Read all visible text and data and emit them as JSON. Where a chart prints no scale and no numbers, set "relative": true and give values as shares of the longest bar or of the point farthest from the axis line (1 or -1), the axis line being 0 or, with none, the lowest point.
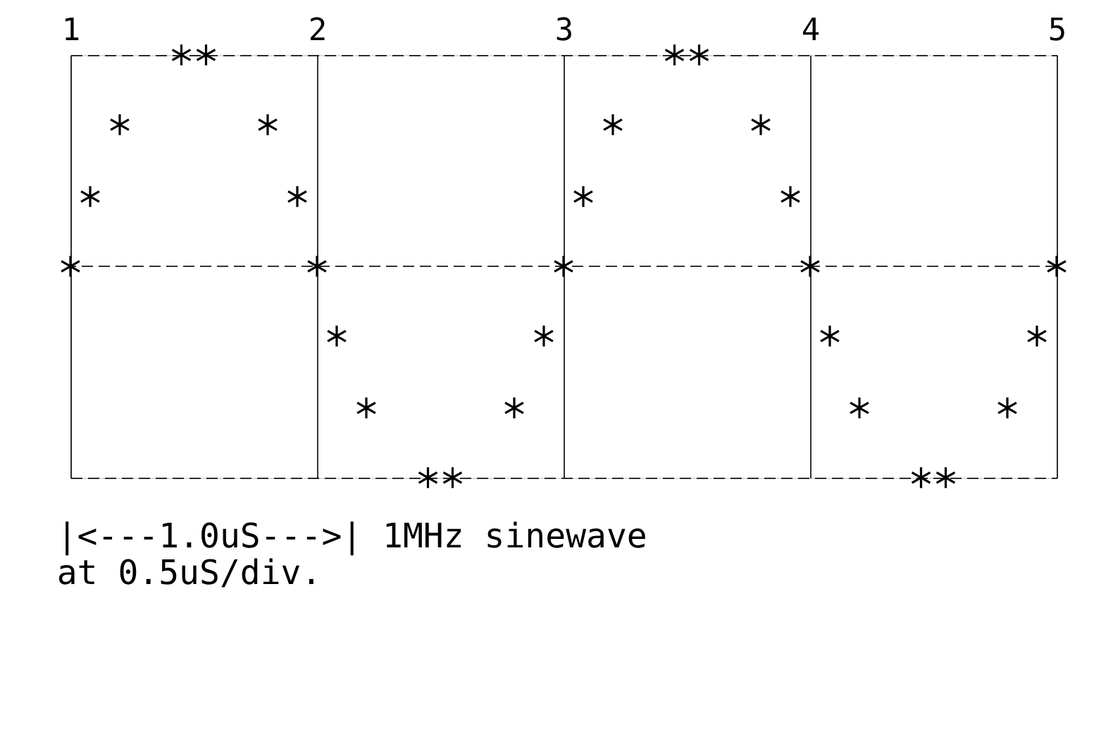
{
  "chart_data": {
    "type": "scatter",
    "relative": true,
    "marker": "cross",
    "ref_lines": [
      {
        "axis": "y",
        "value": 0,
        "line_style": "dashed",
        "color": "#000000"
      }
    ],
    "grid": true,
    "tick_labels": "x",
    "xlim": [
      1,
      5
    ],
    "xticks": [
      1,
      2,
      3,
      4,
      5
    ],
    "x": [
      1,
      1.08,
      1.2,
      1.45,
      1.55,
      1.8,
      1.92,
      2,
      2.08,
      2.2,
      2.45,
      2.55,
      2.8,
      2.92,
      3,
      3.08,
      3.2,
      3.45,
      3.55,
      3.8,
      3.92,
      4,
      4.08,
      4.2,
      4.45,
      4.55,
      4.8,
      4.92,
      5
    ],
    "series": [
      {
        "color": "#000000",
        "values": [
          0,
          0.33,
          0.67,
          1,
          1,
          0.67,
          0.33,
          0,
          -0.33,
          -0.67,
          -1,
          -1,
          -0.67,
          -0.33,
          0,
          0.33,
          0.67,
          1,
          1,
          0.67,
          0.33,
          0,
          -0.33,
          -0.67,
          -1,
          -1,
          -0.67,
          -0.33,
          0
        ]
      }
    ],
    "annotations": [
      "|<---1.0uS--->| 1MHz sinewave",
      "at 0.5uS/div."
    ]
  }
}
